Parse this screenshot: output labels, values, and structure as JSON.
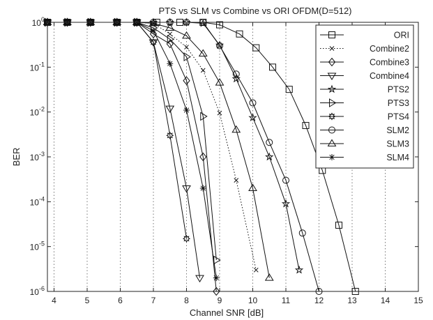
{
  "chart_data": {
    "type": "line",
    "title": "PTS vs SLM vs Combine vs ORI OFDM(D=512)",
    "xlabel": "Channel SNR [dB]",
    "ylabel": "BER",
    "xlim": [
      3.8,
      15
    ],
    "ylim_exponent": [
      -6,
      0
    ],
    "y_scale": "log",
    "grid": "vertical dotted",
    "legend_position": "top-right",
    "x_ticks": [
      "4",
      "5",
      "6",
      "7",
      "8",
      "9",
      "10",
      "11",
      "12",
      "13",
      "14",
      "15"
    ],
    "y_tick_base": "10",
    "y_tick_exponents": [
      "0",
      "-1",
      "-2",
      "-3",
      "-4",
      "-5",
      "-6"
    ],
    "series": [
      {
        "name": "ORI",
        "marker": "square",
        "line": "solid",
        "x": [
          3.8,
          4.4,
          5.1,
          5.9,
          6.5,
          7.1,
          7.8,
          8.5,
          9,
          9.6,
          10.1,
          10.6,
          11.1,
          11.6,
          12.1,
          12.6,
          13.1
        ],
        "y": [
          1,
          1,
          1,
          1,
          1,
          1,
          1,
          1,
          0.88,
          0.55,
          0.27,
          0.1,
          0.032,
          0.005,
          0.0005,
          3e-05,
          1e-06
        ]
      },
      {
        "name": "Combine2",
        "marker": "x",
        "line": "dotted",
        "x": [
          3.8,
          4.4,
          5.1,
          5.9,
          6.5,
          7,
          7.5,
          8,
          8.5,
          9,
          9.5,
          10.1
        ],
        "y": [
          1,
          1,
          1,
          1,
          1,
          0.95,
          0.55,
          0.28,
          0.085,
          0.0095,
          0.0003,
          3e-06
        ]
      },
      {
        "name": "Combine3",
        "marker": "diamond",
        "line": "solid",
        "x": [
          3.8,
          4.4,
          5.1,
          5.9,
          6.5,
          7,
          7.5,
          8,
          8.5,
          8.9
        ],
        "y": [
          1,
          1,
          1,
          1,
          1,
          0.55,
          0.33,
          0.05,
          0.001,
          1e-06
        ]
      },
      {
        "name": "Combine4",
        "marker": "triangle-down",
        "line": "solid",
        "x": [
          3.8,
          4.4,
          5.1,
          5.9,
          6.5,
          7,
          7.5,
          8,
          8.4
        ],
        "y": [
          1,
          1,
          1,
          1,
          1,
          0.36,
          0.012,
          0.0002,
          2e-06
        ]
      },
      {
        "name": "PTS2",
        "marker": "star",
        "line": "solid",
        "x": [
          3.8,
          4.4,
          5.1,
          5.9,
          6.5,
          7,
          7.5,
          8,
          8.5,
          9,
          9.5,
          10,
          10.5,
          11,
          11.4
        ],
        "y": [
          1,
          1,
          1,
          1,
          1,
          1,
          1,
          1,
          0.95,
          0.31,
          0.055,
          0.0075,
          0.001,
          9e-05,
          3e-06
        ]
      },
      {
        "name": "PTS3",
        "marker": "triangle-right",
        "line": "solid",
        "x": [
          3.8,
          4.4,
          5.1,
          5.9,
          6.5,
          7,
          7.5,
          8,
          8.5,
          8.9
        ],
        "y": [
          1,
          1,
          1,
          1,
          1,
          0.75,
          0.42,
          0.17,
          0.008,
          5e-06
        ]
      },
      {
        "name": "PTS4",
        "marker": "gear",
        "line": "solid",
        "x": [
          3.8,
          4.4,
          5.1,
          5.9,
          6.5,
          7,
          7.5,
          8
        ],
        "y": [
          1,
          1,
          1,
          1,
          1,
          0.36,
          0.003,
          1.5e-05
        ]
      },
      {
        "name": "SLM2",
        "marker": "circle",
        "line": "solid",
        "x": [
          3.8,
          4.4,
          5.1,
          5.9,
          6.5,
          7,
          7.5,
          8,
          8.5,
          9,
          9.5,
          10,
          10.5,
          11,
          11.5,
          12
        ],
        "y": [
          1,
          1,
          1,
          1,
          1,
          1,
          1,
          1,
          1,
          0.3,
          0.07,
          0.016,
          0.0021,
          0.0003,
          2e-05,
          1e-06
        ]
      },
      {
        "name": "SLM3",
        "marker": "triangle-up",
        "line": "solid",
        "x": [
          3.8,
          4.4,
          5.1,
          5.9,
          6.5,
          7,
          7.5,
          8,
          8.5,
          9,
          9.5,
          10,
          10.5
        ],
        "y": [
          1,
          1,
          1,
          1,
          1,
          0.95,
          0.75,
          0.5,
          0.2,
          0.045,
          0.004,
          0.0002,
          2e-06
        ]
      },
      {
        "name": "SLM4",
        "marker": "asterisk",
        "line": "solid",
        "x": [
          3.8,
          4.4,
          5.1,
          5.9,
          6.5,
          7,
          7.5,
          8,
          8.5,
          8.9
        ],
        "y": [
          1,
          1,
          1,
          1,
          1,
          0.65,
          0.12,
          0.011,
          0.0002,
          2e-06
        ]
      }
    ]
  }
}
